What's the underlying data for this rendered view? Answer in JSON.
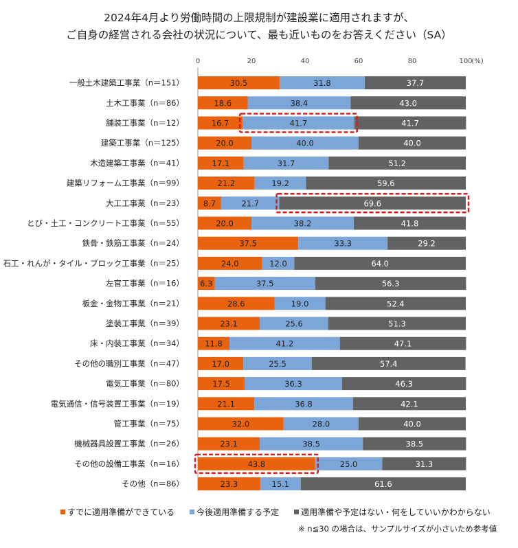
{
  "title_lines": [
    "2024年4月より労働時間の上限規制が建設業に適用されますが、",
    "ご自身の経営される会社の状況について、最も近いものをお答えください（SA）"
  ],
  "note": "※ n≦30 の場合は、サンプルサイズが小さいため参考値",
  "colors": {
    "series": [
      "#e8620f",
      "#7ca6d8",
      "#626262"
    ],
    "highlight": "#d42020"
  },
  "chart_data": {
    "type": "bar",
    "orientation": "horizontal",
    "stacked": true,
    "title": "2024年4月より労働時間の上限規制が建設業に適用されますが、ご自身の経営される会社の状況について、最も近いものをお答えください（SA）",
    "unit_label": "(%)",
    "xlim": [
      0,
      100
    ],
    "xticks": [
      "0",
      "20",
      "40",
      "60",
      "80",
      "100"
    ],
    "categories": [
      "一般土木建築工事業（n＝151）",
      "土木工事業（n＝86）",
      "舗装工事業（n＝12）",
      "建築工事業（n＝125）",
      "木造建築工事業（n＝41）",
      "建築リフォーム工事業（n＝99）",
      "大工工事業（n＝23）",
      "とび・土工・コンクリート工事業（n＝55）",
      "鉄骨・鉄筋工事業（n＝24）",
      "石工・れんが・タイル・ブロック工事業（n＝25）",
      "左官工事業（n＝16）",
      "板金・金物工事業（n＝21）",
      "塗装工事業（n＝39）",
      "床・内装工事業（n＝34）",
      "その他の職別工事業（n＝47）",
      "電気工事業（n＝80）",
      "電気通信・信号装置工事業（n＝19）",
      "管工事業（n＝75）",
      "機械器具設置工事業（n＝26）",
      "その他の設備工事業（n＝16）",
      "その他（n＝86）"
    ],
    "series": [
      {
        "name": "すでに適用準備ができている",
        "values": [
          30.5,
          18.6,
          16.7,
          20.0,
          17.1,
          21.2,
          8.7,
          20.0,
          37.5,
          24.0,
          6.3,
          28.6,
          23.1,
          11.8,
          17.0,
          17.5,
          21.1,
          32.0,
          23.1,
          43.8,
          23.3
        ]
      },
      {
        "name": "今後適用準備する予定",
        "values": [
          31.8,
          38.4,
          41.7,
          40.0,
          31.7,
          19.2,
          21.7,
          38.2,
          33.3,
          12.0,
          37.5,
          19.0,
          25.6,
          41.2,
          25.5,
          36.3,
          36.8,
          28.0,
          38.5,
          25.0,
          15.1
        ]
      },
      {
        "name": "適用準備や予定はない・何をしていいかわからない",
        "values": [
          37.7,
          43.0,
          41.7,
          40.0,
          51.2,
          59.6,
          69.6,
          41.8,
          29.2,
          64.0,
          56.3,
          52.4,
          51.3,
          47.1,
          57.4,
          46.3,
          42.1,
          40.0,
          38.5,
          31.3,
          61.6
        ]
      }
    ],
    "highlights": [
      {
        "category_index": 2,
        "series_index": 1
      },
      {
        "category_index": 6,
        "series_index": 2
      },
      {
        "category_index": 19,
        "series_index": 0
      }
    ]
  }
}
